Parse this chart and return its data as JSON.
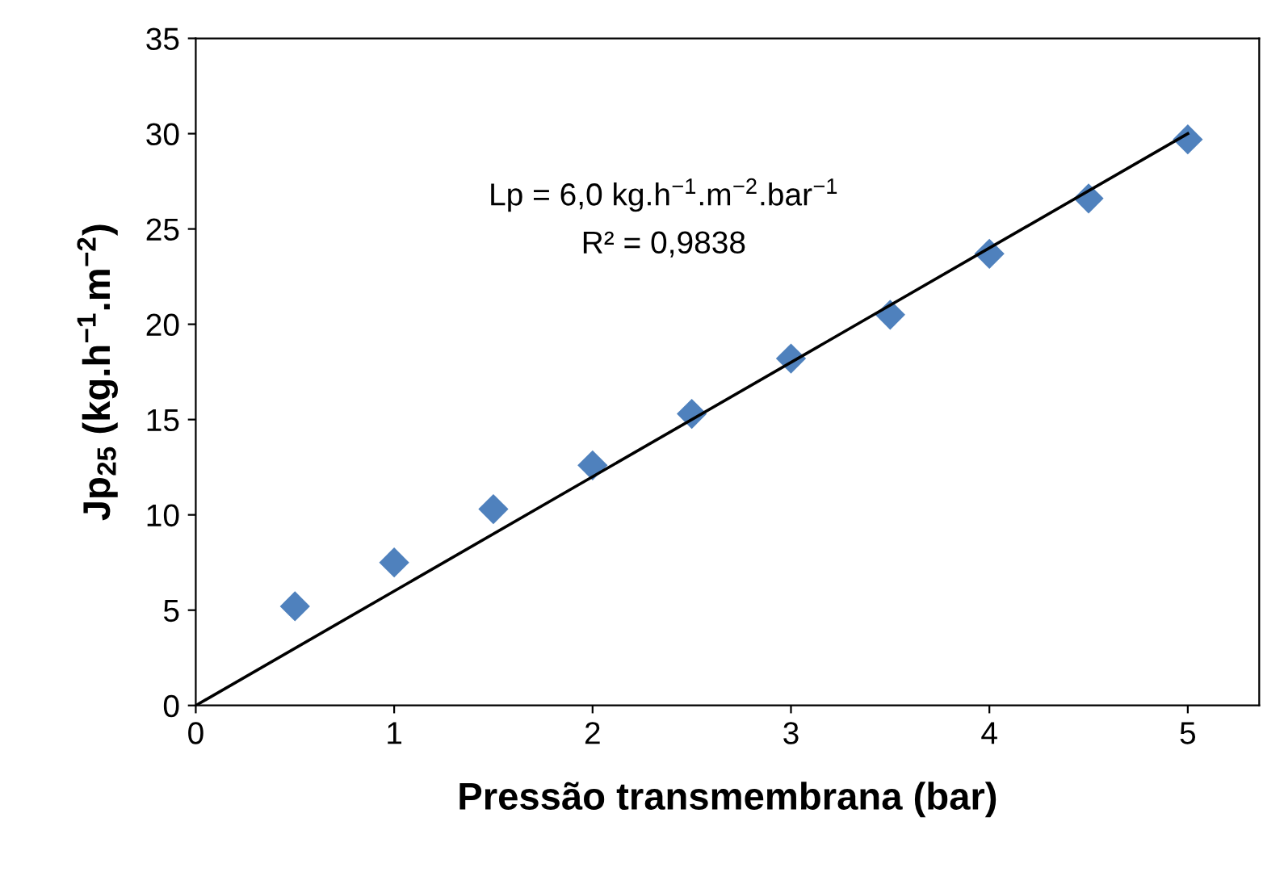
{
  "chart_data": {
    "type": "scatter",
    "xlabel": "Pressão transmembrana (bar)",
    "ylabel": "Jp$_{25}$ (kg.h$^{−1}$.m$^{−2}$)",
    "xlim": [
      0,
      5.36
    ],
    "xticks": [
      0,
      1,
      2,
      3,
      4,
      5
    ],
    "ylim": [
      0,
      35
    ],
    "yticks": [
      0,
      5,
      10,
      15,
      20,
      25,
      30,
      35
    ],
    "grid": false,
    "series": [
      {
        "marker": "diamond",
        "color": "#4f81bd",
        "x": [
          0.5,
          1,
          1.5,
          2,
          2.5,
          3,
          3.5,
          4,
          4.5,
          5
        ],
        "values": [
          5.2,
          7.5,
          10.3,
          12.6,
          15.3,
          18.2,
          20.5,
          23.7,
          26.6,
          29.7
        ]
      },
      {
        "type": "line",
        "marker": "none",
        "color": "#000000",
        "x": [
          0,
          5
        ],
        "values": [
          0,
          30
        ]
      }
    ],
    "annotations": [
      "Lp = 6,0 kg.h$^{−1}$.m$^{−2}$.bar$^{−1}$",
      "R² = 0,9838"
    ]
  }
}
